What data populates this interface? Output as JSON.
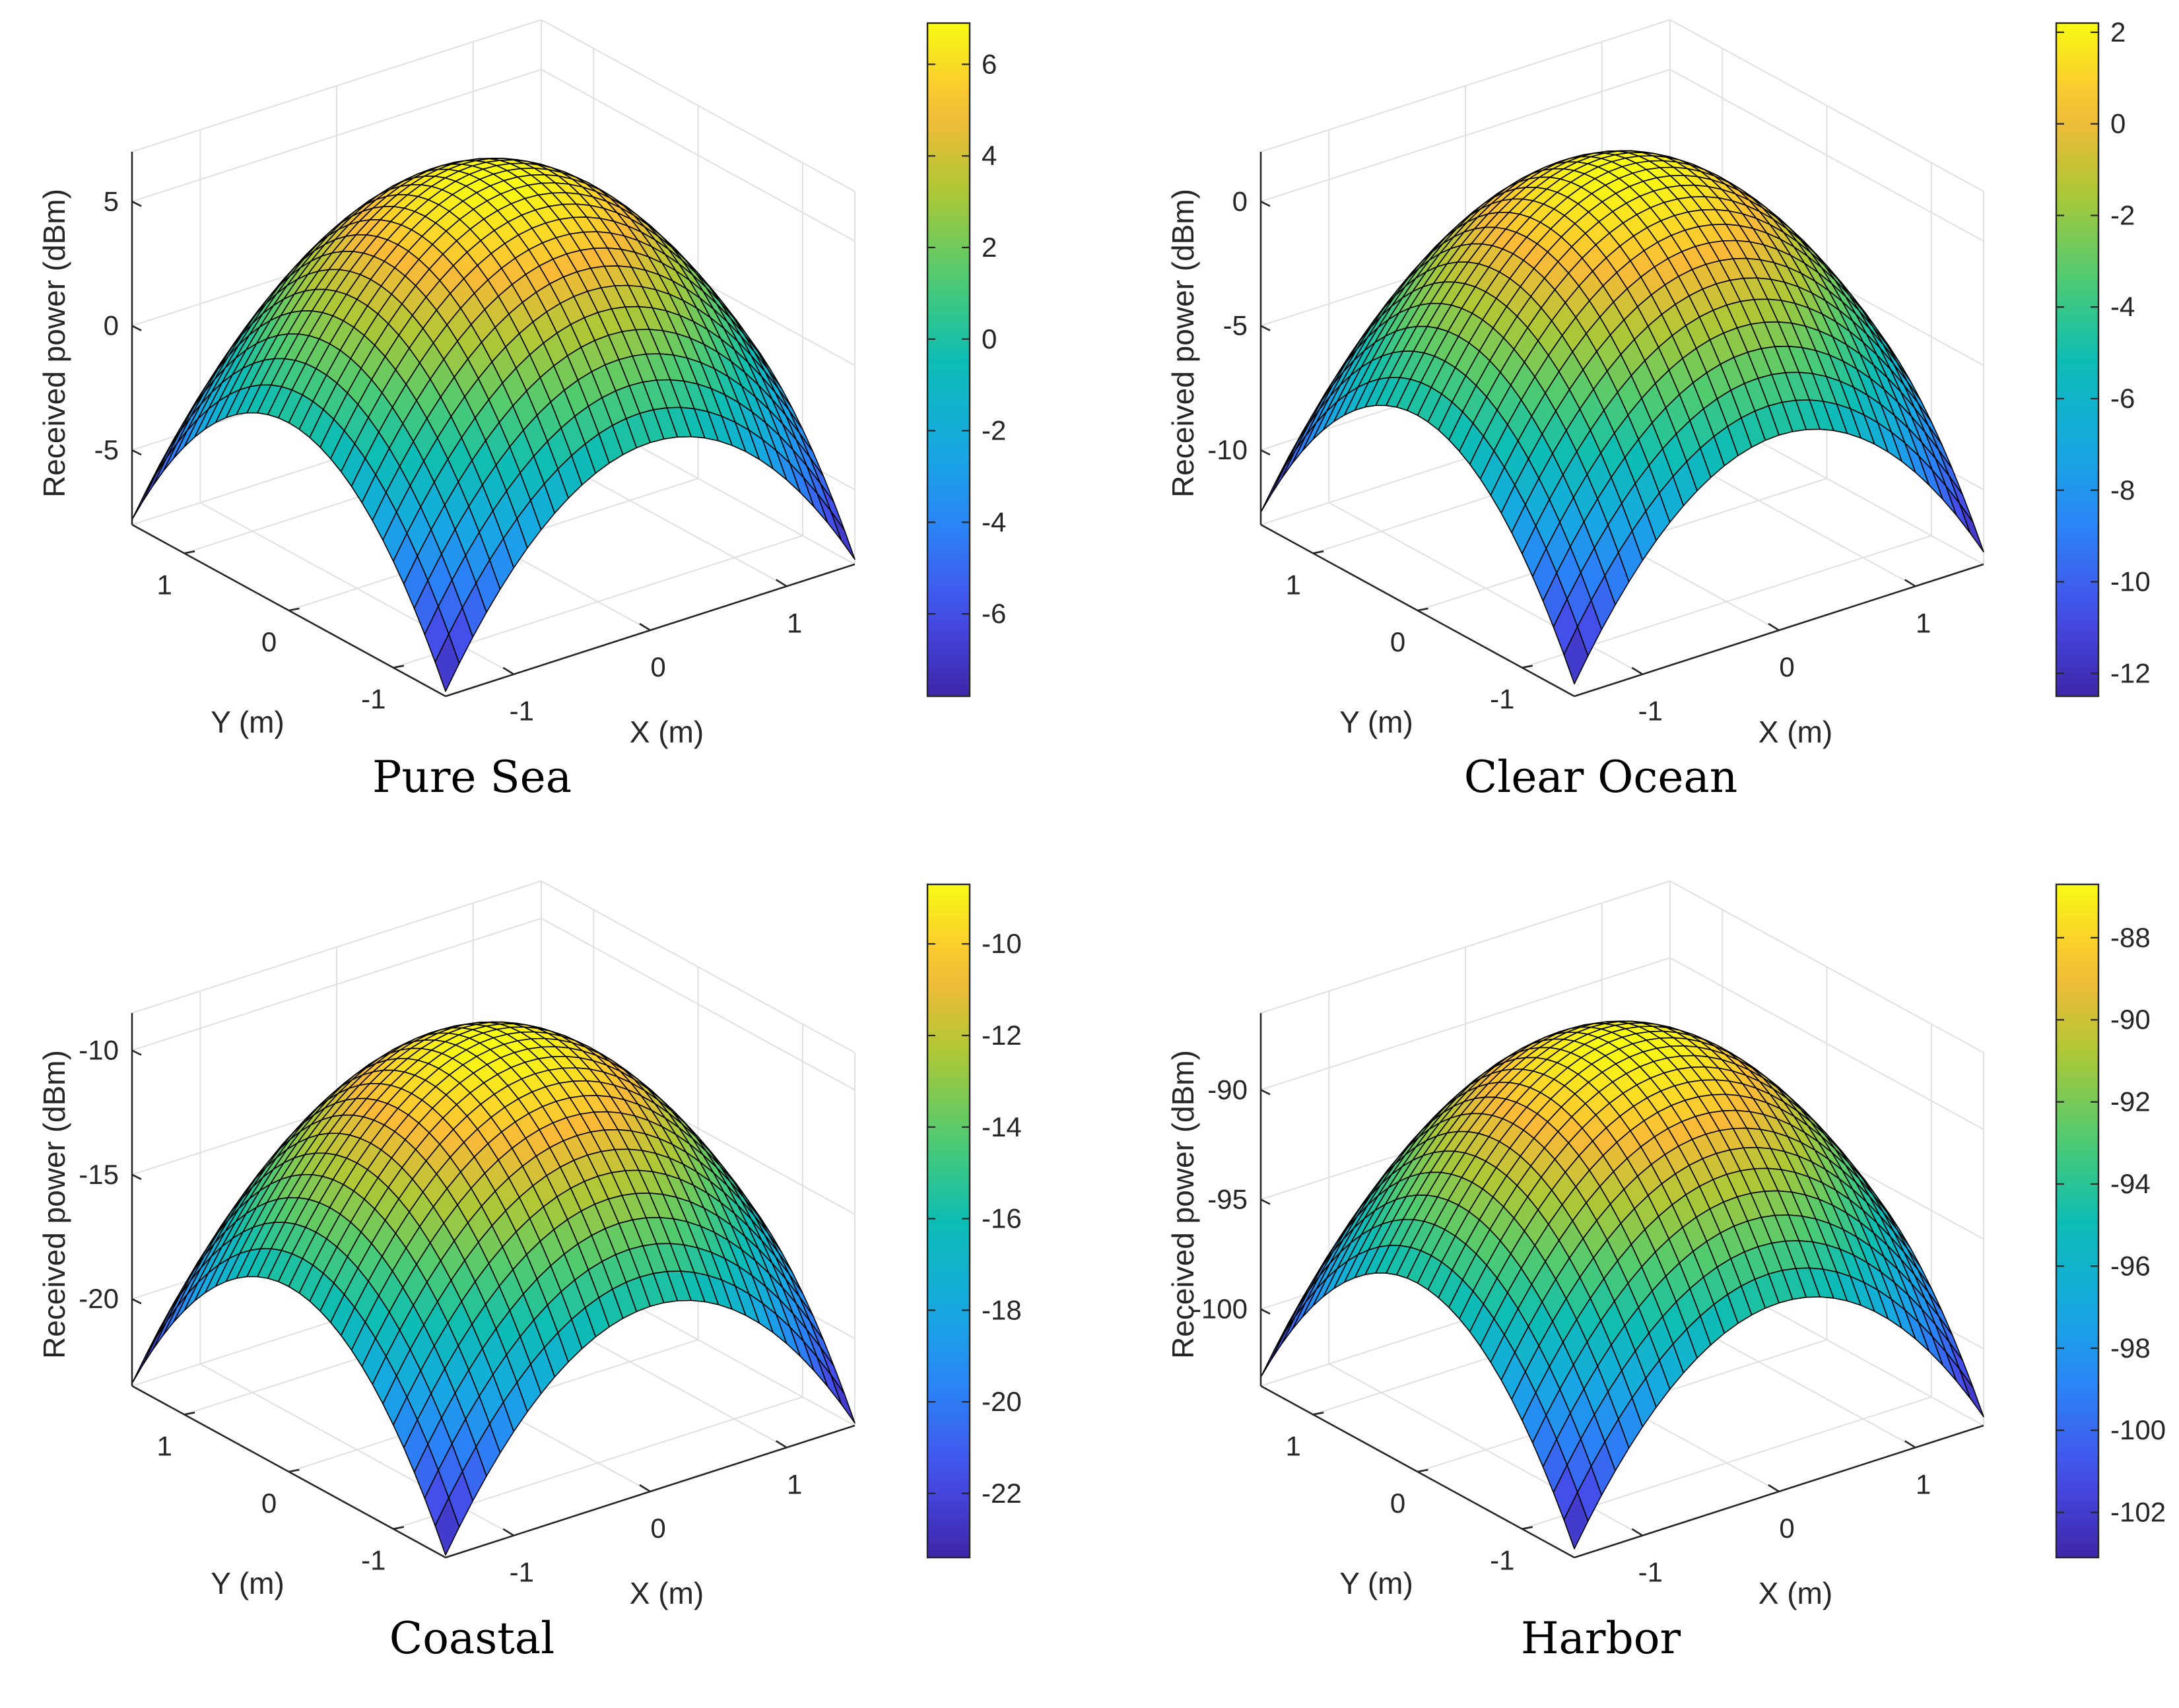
{
  "figure": {
    "description_labels": {
      "zlabel": "Received power (dBm)",
      "xlabel": "X (m)",
      "ylabel": "Y (m)"
    }
  },
  "colors": {
    "background": "#ffffff",
    "grid": "#e0e0e0",
    "axis": "#262626",
    "mesh_edge": "#000000",
    "colormap": "parula"
  },
  "chart_data": [
    {
      "type": "surface",
      "title": "Pure Sea",
      "xlabel": "X (m)",
      "ylabel": "Y (m)",
      "zlabel": "Received power (dBm)",
      "x_ticks": [
        "-1",
        "0",
        "1"
      ],
      "y_ticks": [
        "-1",
        "0",
        "1"
      ],
      "z_ticks": [
        -5,
        0,
        5
      ],
      "xlim": [
        -1.5,
        1.5
      ],
      "ylim": [
        -1.5,
        1.5
      ],
      "zlim": [
        -8,
        7
      ],
      "peak_value": 6.9,
      "corner_value": -7.8,
      "colorbar": {
        "ticks": [
          6,
          4,
          2,
          0,
          -2,
          -4,
          -6
        ],
        "range": [
          -7.8,
          6.9
        ]
      }
    },
    {
      "type": "surface",
      "title": "Clear Ocean",
      "xlabel": "X (m)",
      "ylabel": "Y (m)",
      "zlabel": "Received power (dBm)",
      "x_ticks": [
        "-1",
        "0",
        "1"
      ],
      "y_ticks": [
        "-1",
        "0",
        "1"
      ],
      "z_ticks": [
        -10,
        -5,
        0
      ],
      "xlim": [
        -1.5,
        1.5
      ],
      "ylim": [
        -1.5,
        1.5
      ],
      "zlim": [
        -13,
        2
      ],
      "peak_value": 2.2,
      "corner_value": -12.5,
      "colorbar": {
        "ticks": [
          2,
          0,
          -2,
          -4,
          -6,
          -8,
          -10,
          -12
        ],
        "range": [
          -12.5,
          2.2
        ]
      }
    },
    {
      "type": "surface",
      "title": "Coastal",
      "xlabel": "X (m)",
      "ylabel": "Y (m)",
      "zlabel": "Received power (dBm)",
      "x_ticks": [
        "-1",
        "0",
        "1"
      ],
      "y_ticks": [
        "-1",
        "0",
        "1"
      ],
      "z_ticks": [
        -20,
        -15,
        -10
      ],
      "xlim": [
        -1.5,
        1.5
      ],
      "ylim": [
        -1.5,
        1.5
      ],
      "zlim": [
        -23.5,
        -8.5
      ],
      "peak_value": -8.7,
      "corner_value": -23.4,
      "colorbar": {
        "ticks": [
          -10,
          -12,
          -14,
          -16,
          -18,
          -20,
          -22
        ],
        "range": [
          -23.4,
          -8.7
        ]
      }
    },
    {
      "type": "surface",
      "title": "Harbor",
      "xlabel": "X (m)",
      "ylabel": "Y (m)",
      "zlabel": "Received power (dBm)",
      "x_ticks": [
        "-1",
        "0",
        "1"
      ],
      "y_ticks": [
        "-1",
        "0",
        "1"
      ],
      "z_ticks": [
        -100,
        -95,
        -90
      ],
      "xlim": [
        -1.5,
        1.5
      ],
      "ylim": [
        -1.5,
        1.5
      ],
      "zlim": [
        -103.5,
        -86.5
      ],
      "peak_value": -86.7,
      "corner_value": -103.1,
      "colorbar": {
        "ticks": [
          -88,
          -90,
          -92,
          -94,
          -96,
          -98,
          -100,
          -102
        ],
        "range": [
          -103.1,
          -86.7
        ]
      }
    }
  ]
}
